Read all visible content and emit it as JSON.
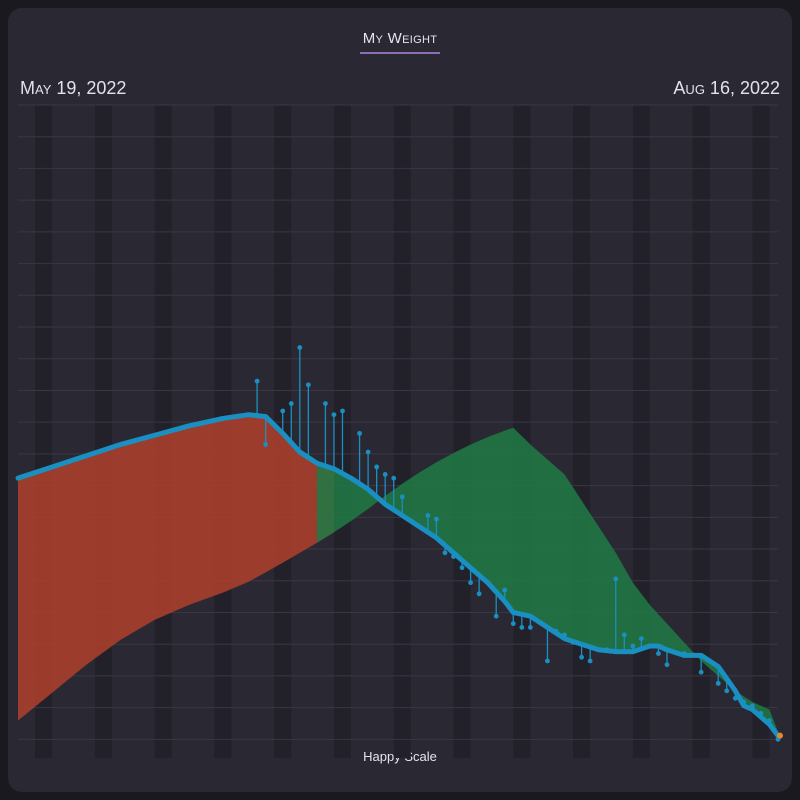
{
  "header": {
    "title": "My Weight",
    "start_date": "May 19, 2022",
    "end_date": "Aug 16, 2022"
  },
  "footer": {
    "brand": "Happy Scale"
  },
  "colors": {
    "background": "#2a2933",
    "stripe": "#22212a",
    "trend": "#1a8fc2",
    "above_band": "#b0402b",
    "below_band": "#1f7a45",
    "weigh_in": "#1a8fc2",
    "title_underline": "#8d6fb5"
  },
  "chart_data": {
    "type": "line",
    "title": "My Weight",
    "x_range": [
      "2022-05-19",
      "2022-08-16"
    ],
    "y_axis_labels": "not shown",
    "grid": true,
    "series": [
      {
        "values": [
          [
            0,
            100
          ],
          [
            4,
            97
          ],
          [
            8,
            94
          ],
          [
            12,
            91
          ],
          [
            16,
            88.5
          ],
          [
            20,
            86
          ],
          [
            24,
            84
          ],
          [
            27,
            83
          ],
          [
            29,
            83.5
          ],
          [
            31,
            88
          ],
          [
            33,
            93
          ],
          [
            35,
            96
          ],
          [
            37,
            97.5
          ],
          [
            39,
            100
          ],
          [
            41,
            103
          ],
          [
            43,
            107
          ],
          [
            45,
            110
          ],
          [
            47,
            113
          ],
          [
            49,
            116
          ],
          [
            51,
            120
          ],
          [
            53,
            124
          ],
          [
            55,
            128
          ],
          [
            57,
            133
          ],
          [
            58,
            136
          ],
          [
            60,
            137
          ],
          [
            62,
            140
          ],
          [
            64,
            143
          ],
          [
            66,
            144.5
          ],
          [
            68,
            146
          ],
          [
            70,
            146.5
          ],
          [
            72,
            146.5
          ],
          [
            74,
            145
          ],
          [
            75,
            145
          ],
          [
            76,
            146
          ],
          [
            78,
            147.5
          ],
          [
            80,
            147.5
          ],
          [
            82,
            150.5
          ],
          [
            84,
            157
          ],
          [
            85,
            161
          ],
          [
            86,
            162
          ],
          [
            88,
            166
          ],
          [
            89,
            169
          ]
        ]
      },
      {
        "values": [
          [
            28,
            74
          ],
          [
            29,
            91
          ],
          [
            31,
            82
          ],
          [
            32,
            80
          ],
          [
            33,
            65
          ],
          [
            34,
            75
          ],
          [
            36,
            80
          ],
          [
            37,
            83
          ],
          [
            38,
            82
          ],
          [
            40,
            88
          ],
          [
            41,
            93
          ],
          [
            42,
            97
          ],
          [
            43,
            99
          ],
          [
            44,
            100
          ],
          [
            45,
            105
          ],
          [
            48,
            110
          ],
          [
            49,
            111
          ],
          [
            50,
            120
          ],
          [
            51,
            121
          ],
          [
            52,
            124
          ],
          [
            53,
            128
          ],
          [
            54,
            131
          ],
          [
            56,
            137
          ],
          [
            57,
            130
          ],
          [
            58,
            139
          ],
          [
            59,
            140
          ],
          [
            60,
            140
          ],
          [
            62,
            149
          ],
          [
            63,
            141
          ],
          [
            64,
            142
          ],
          [
            65,
            144
          ],
          [
            66,
            148
          ],
          [
            67,
            149
          ],
          [
            68,
            146
          ],
          [
            69,
            146
          ],
          [
            70,
            127
          ],
          [
            71,
            142
          ],
          [
            72,
            145
          ],
          [
            73,
            143
          ],
          [
            74,
            145
          ],
          [
            75,
            147
          ],
          [
            76,
            150
          ],
          [
            78,
            147
          ],
          [
            80,
            152
          ],
          [
            82,
            155
          ],
          [
            83,
            157
          ],
          [
            84,
            159
          ],
          [
            85,
            160
          ],
          [
            86,
            161
          ],
          [
            87,
            163
          ],
          [
            88,
            165
          ],
          [
            89,
            170
          ]
        ]
      }
    ]
  }
}
